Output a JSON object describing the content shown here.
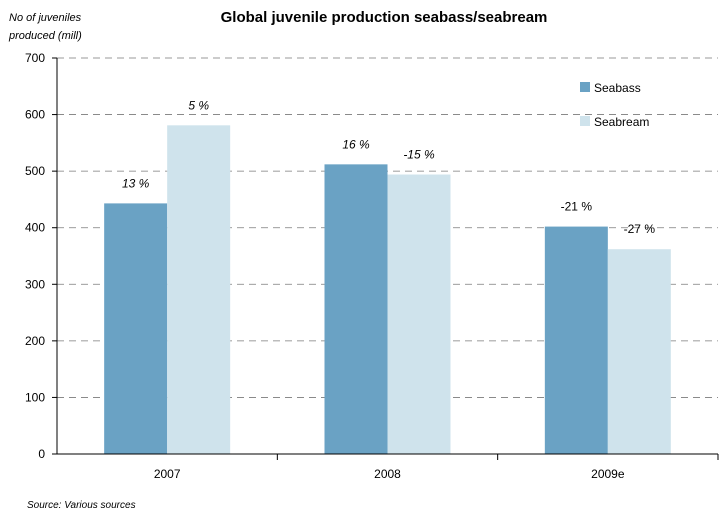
{
  "chart_data": {
    "type": "bar",
    "title": "Global juvenile production seabass/seabream",
    "ylabel_lines": [
      "No of juveniles",
      "produced (mill)"
    ],
    "xlabel": "",
    "categories": [
      "2007",
      "2008",
      "2009e"
    ],
    "series": [
      {
        "name": "Seabass",
        "values": [
          443,
          512,
          402
        ],
        "labels": [
          "13 %",
          "16 %",
          "-21 %"
        ],
        "color": "#6aa2c4"
      },
      {
        "name": "Seabream",
        "values": [
          581,
          494,
          362
        ],
        "labels": [
          "5 %",
          "-15 %",
          "-27 %"
        ],
        "color": "#cfe3ec"
      }
    ],
    "ylim": [
      0,
      700
    ],
    "yticks": [
      0,
      100,
      200,
      300,
      400,
      500,
      600,
      700
    ],
    "grid": true,
    "grid_style": "dashed",
    "legend_position": "top-right",
    "source": "Source: Various sources"
  }
}
